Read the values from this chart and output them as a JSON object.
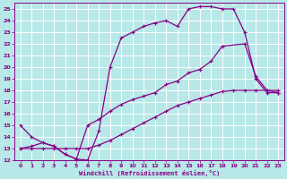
{
  "xlabel": "Windchill (Refroidissement éolien,°C)",
  "bg_color": "#b8e8e8",
  "grid_color": "#ffffff",
  "line_color": "#880088",
  "xlim": [
    -0.5,
    23.5
  ],
  "ylim": [
    12,
    25.5
  ],
  "xticks": [
    0,
    1,
    2,
    3,
    4,
    5,
    6,
    7,
    8,
    9,
    10,
    11,
    12,
    13,
    14,
    15,
    16,
    17,
    18,
    19,
    20,
    21,
    22,
    23
  ],
  "yticks": [
    12,
    13,
    14,
    15,
    16,
    17,
    18,
    19,
    20,
    21,
    22,
    23,
    24,
    25
  ],
  "line1_x": [
    0,
    1,
    2,
    3,
    4,
    5,
    6,
    7,
    8,
    9,
    10,
    11,
    12,
    13,
    14,
    15,
    16,
    17,
    18,
    19,
    20,
    21,
    22,
    23
  ],
  "line1_y": [
    15,
    14,
    13.5,
    13.2,
    12.5,
    12.1,
    12.0,
    14.5,
    20,
    22.5,
    23,
    23.5,
    23.8,
    24,
    23.5,
    25,
    25.2,
    25.2,
    25.0,
    25.0,
    23,
    19,
    17.8,
    17.8
  ],
  "line2_x": [
    0,
    1,
    2,
    3,
    4,
    5,
    6,
    7,
    8,
    9,
    10,
    11,
    12,
    13,
    14,
    15,
    16,
    17,
    18,
    19,
    20,
    21,
    22,
    23
  ],
  "line2_y": [
    13,
    13,
    13,
    13,
    13,
    13,
    13,
    13.3,
    13.7,
    14.2,
    14.7,
    15.2,
    15.7,
    16.2,
    16.7,
    17.0,
    17.3,
    17.6,
    17.9,
    18.0,
    18.0,
    18.0,
    18.0,
    18.0
  ],
  "line3_x": [
    0,
    1,
    2,
    3,
    4,
    5,
    6,
    7,
    8,
    9,
    10,
    11,
    12,
    13,
    14,
    15,
    16,
    17,
    18,
    20,
    21,
    22,
    23
  ],
  "line3_y": [
    13,
    13.2,
    13.5,
    13.2,
    12.5,
    12.1,
    15.0,
    15.5,
    16.2,
    16.8,
    17.2,
    17.5,
    17.8,
    18.5,
    18.8,
    19.5,
    19.8,
    20.5,
    21.8,
    22.0,
    19.2,
    18.0,
    17.8
  ]
}
